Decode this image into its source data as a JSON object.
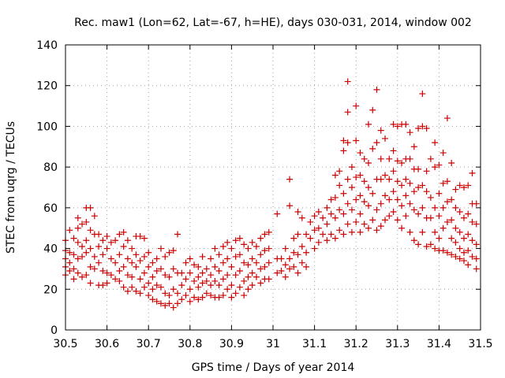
{
  "chart_data": {
    "type": "scatter",
    "title": "Rec. maw1 (Lon=62, Lat=-67, h=HE), days 030-031, 2014, window 002",
    "xlabel": "GPS time / Days of year 2014",
    "ylabel": "STEC from uqrg / TECUs",
    "xlim": [
      30.5,
      31.5
    ],
    "ylim": [
      0,
      140
    ],
    "xticks": [
      "30.5",
      "30.6",
      "30.7",
      "30.8",
      "30.9",
      "31",
      "31.1",
      "31.2",
      "31.3",
      "31.4",
      "31.5"
    ],
    "yticks": [
      "0",
      "20",
      "40",
      "60",
      "80",
      "100",
      "120",
      "140"
    ],
    "grid": true,
    "marker": "+",
    "color": "#cc0000",
    "points": [
      [
        30.5,
        44
      ],
      [
        30.5,
        39
      ],
      [
        30.5,
        35
      ],
      [
        30.5,
        31
      ],
      [
        30.5,
        27
      ],
      [
        30.51,
        49
      ],
      [
        30.51,
        38
      ],
      [
        30.51,
        33
      ],
      [
        30.51,
        29
      ],
      [
        30.52,
        45
      ],
      [
        30.52,
        37
      ],
      [
        30.52,
        30
      ],
      [
        30.52,
        25
      ],
      [
        30.53,
        55
      ],
      [
        30.53,
        50
      ],
      [
        30.53,
        43
      ],
      [
        30.53,
        35
      ],
      [
        30.53,
        28
      ],
      [
        30.54,
        52
      ],
      [
        30.54,
        41
      ],
      [
        30.54,
        36
      ],
      [
        30.54,
        26
      ],
      [
        30.55,
        60
      ],
      [
        30.55,
        53
      ],
      [
        30.55,
        44
      ],
      [
        30.55,
        38
      ],
      [
        30.55,
        27
      ],
      [
        30.56,
        60
      ],
      [
        30.56,
        49
      ],
      [
        30.56,
        40
      ],
      [
        30.56,
        31
      ],
      [
        30.56,
        23
      ],
      [
        30.57,
        56
      ],
      [
        30.57,
        47
      ],
      [
        30.57,
        36
      ],
      [
        30.57,
        30
      ],
      [
        30.58,
        47
      ],
      [
        30.58,
        41
      ],
      [
        30.58,
        33
      ],
      [
        30.58,
        22
      ],
      [
        30.59,
        44
      ],
      [
        30.59,
        37
      ],
      [
        30.59,
        29
      ],
      [
        30.59,
        22
      ],
      [
        30.6,
        46
      ],
      [
        30.6,
        40
      ],
      [
        30.6,
        28
      ],
      [
        30.6,
        23
      ],
      [
        30.61,
        43
      ],
      [
        30.61,
        35
      ],
      [
        30.61,
        27
      ],
      [
        30.62,
        44
      ],
      [
        30.62,
        33
      ],
      [
        30.62,
        25
      ],
      [
        30.63,
        47
      ],
      [
        30.63,
        37
      ],
      [
        30.63,
        29
      ],
      [
        30.63,
        24
      ],
      [
        30.64,
        48
      ],
      [
        30.64,
        41
      ],
      [
        30.64,
        31
      ],
      [
        30.64,
        21
      ],
      [
        30.65,
        44
      ],
      [
        30.65,
        35
      ],
      [
        30.65,
        27
      ],
      [
        30.65,
        19
      ],
      [
        30.66,
        40
      ],
      [
        30.66,
        33
      ],
      [
        30.66,
        26
      ],
      [
        30.66,
        21
      ],
      [
        30.67,
        46
      ],
      [
        30.67,
        37
      ],
      [
        30.67,
        31
      ],
      [
        30.67,
        19
      ],
      [
        30.68,
        46
      ],
      [
        30.68,
        34
      ],
      [
        30.68,
        25
      ],
      [
        30.68,
        18
      ],
      [
        30.69,
        45
      ],
      [
        30.69,
        36
      ],
      [
        30.69,
        28
      ],
      [
        30.69,
        21
      ],
      [
        30.7,
        38
      ],
      [
        30.7,
        31
      ],
      [
        30.7,
        23
      ],
      [
        30.7,
        17
      ],
      [
        30.71,
        33
      ],
      [
        30.71,
        26
      ],
      [
        30.71,
        20
      ],
      [
        30.71,
        15
      ],
      [
        30.72,
        35
      ],
      [
        30.72,
        29
      ],
      [
        30.72,
        22
      ],
      [
        30.72,
        14
      ],
      [
        30.73,
        40
      ],
      [
        30.73,
        30
      ],
      [
        30.73,
        21
      ],
      [
        30.73,
        13
      ],
      [
        30.74,
        36
      ],
      [
        30.74,
        27
      ],
      [
        30.74,
        18
      ],
      [
        30.74,
        12
      ],
      [
        30.75,
        38
      ],
      [
        30.75,
        26
      ],
      [
        30.75,
        17
      ],
      [
        30.75,
        13
      ],
      [
        30.76,
        39
      ],
      [
        30.76,
        30
      ],
      [
        30.76,
        20
      ],
      [
        30.76,
        11
      ],
      [
        30.77,
        47
      ],
      [
        30.77,
        28
      ],
      [
        30.77,
        18
      ],
      [
        30.77,
        13
      ],
      [
        30.78,
        28
      ],
      [
        30.78,
        22
      ],
      [
        30.78,
        15
      ],
      [
        30.79,
        33
      ],
      [
        30.79,
        25
      ],
      [
        30.79,
        17
      ],
      [
        30.8,
        35
      ],
      [
        30.8,
        28
      ],
      [
        30.8,
        20
      ],
      [
        30.8,
        14
      ],
      [
        30.81,
        32
      ],
      [
        30.81,
        24
      ],
      [
        30.81,
        16
      ],
      [
        30.82,
        31
      ],
      [
        30.82,
        26
      ],
      [
        30.82,
        21
      ],
      [
        30.82,
        15
      ],
      [
        30.83,
        36
      ],
      [
        30.83,
        28
      ],
      [
        30.83,
        23
      ],
      [
        30.83,
        16
      ],
      [
        30.84,
        30
      ],
      [
        30.84,
        24
      ],
      [
        30.84,
        18
      ],
      [
        30.85,
        35
      ],
      [
        30.85,
        27
      ],
      [
        30.85,
        22
      ],
      [
        30.85,
        17
      ],
      [
        30.86,
        40
      ],
      [
        30.86,
        31
      ],
      [
        30.86,
        24
      ],
      [
        30.86,
        16
      ],
      [
        30.87,
        37
      ],
      [
        30.87,
        29
      ],
      [
        30.87,
        22
      ],
      [
        30.87,
        16
      ],
      [
        30.88,
        41
      ],
      [
        30.88,
        33
      ],
      [
        30.88,
        25
      ],
      [
        30.88,
        17
      ],
      [
        30.89,
        43
      ],
      [
        30.89,
        35
      ],
      [
        30.89,
        27
      ],
      [
        30.89,
        20
      ],
      [
        30.9,
        40
      ],
      [
        30.9,
        31
      ],
      [
        30.9,
        22
      ],
      [
        30.9,
        16
      ],
      [
        30.91,
        44
      ],
      [
        30.91,
        36
      ],
      [
        30.91,
        27
      ],
      [
        30.91,
        18
      ],
      [
        30.92,
        45
      ],
      [
        30.92,
        37
      ],
      [
        30.92,
        29
      ],
      [
        30.92,
        21
      ],
      [
        30.93,
        42
      ],
      [
        30.93,
        33
      ],
      [
        30.93,
        24
      ],
      [
        30.93,
        17
      ],
      [
        30.94,
        40
      ],
      [
        30.94,
        32
      ],
      [
        30.94,
        26
      ],
      [
        30.94,
        20
      ],
      [
        30.95,
        43
      ],
      [
        30.95,
        35
      ],
      [
        30.95,
        28
      ],
      [
        30.95,
        22
      ],
      [
        30.96,
        41
      ],
      [
        30.96,
        33
      ],
      [
        30.96,
        26
      ],
      [
        30.97,
        45
      ],
      [
        30.97,
        37
      ],
      [
        30.97,
        30
      ],
      [
        30.97,
        23
      ],
      [
        30.98,
        47
      ],
      [
        30.98,
        39
      ],
      [
        30.98,
        31
      ],
      [
        30.98,
        25
      ],
      [
        30.99,
        48
      ],
      [
        30.99,
        40
      ],
      [
        30.99,
        33
      ],
      [
        30.99,
        25
      ],
      [
        31.01,
        57
      ],
      [
        31.01,
        35
      ],
      [
        31.01,
        28
      ],
      [
        31.02,
        35
      ],
      [
        31.02,
        29
      ],
      [
        31.03,
        40
      ],
      [
        31.03,
        32
      ],
      [
        31.03,
        26
      ],
      [
        31.04,
        74
      ],
      [
        31.04,
        61
      ],
      [
        31.04,
        35
      ],
      [
        31.04,
        30
      ],
      [
        31.05,
        45
      ],
      [
        31.05,
        38
      ],
      [
        31.05,
        31
      ],
      [
        31.06,
        58
      ],
      [
        31.06,
        47
      ],
      [
        31.06,
        37
      ],
      [
        31.06,
        28
      ],
      [
        31.07,
        55
      ],
      [
        31.07,
        41
      ],
      [
        31.07,
        33
      ],
      [
        31.08,
        47
      ],
      [
        31.08,
        38
      ],
      [
        31.08,
        31
      ],
      [
        31.09,
        53
      ],
      [
        31.09,
        45
      ],
      [
        31.1,
        56
      ],
      [
        31.1,
        49
      ],
      [
        31.1,
        40
      ],
      [
        31.11,
        58
      ],
      [
        31.11,
        50
      ],
      [
        31.11,
        43
      ],
      [
        31.12,
        55
      ],
      [
        31.12,
        47
      ],
      [
        31.13,
        60
      ],
      [
        31.13,
        52
      ],
      [
        31.13,
        44
      ],
      [
        31.14,
        64
      ],
      [
        31.14,
        57
      ],
      [
        31.14,
        47
      ],
      [
        31.15,
        76
      ],
      [
        31.15,
        65
      ],
      [
        31.15,
        55
      ],
      [
        31.15,
        45
      ],
      [
        31.16,
        78
      ],
      [
        31.16,
        71
      ],
      [
        31.16,
        59
      ],
      [
        31.16,
        49
      ],
      [
        31.17,
        93
      ],
      [
        31.17,
        88
      ],
      [
        31.17,
        67
      ],
      [
        31.17,
        57
      ],
      [
        31.17,
        47
      ],
      [
        31.18,
        122
      ],
      [
        31.18,
        107
      ],
      [
        31.18,
        92
      ],
      [
        31.18,
        74
      ],
      [
        31.18,
        62
      ],
      [
        31.18,
        52
      ],
      [
        31.19,
        80
      ],
      [
        31.19,
        70
      ],
      [
        31.19,
        59
      ],
      [
        31.19,
        48
      ],
      [
        31.2,
        110
      ],
      [
        31.2,
        93
      ],
      [
        31.2,
        75
      ],
      [
        31.2,
        64
      ],
      [
        31.2,
        53
      ],
      [
        31.21,
        87
      ],
      [
        31.21,
        76
      ],
      [
        31.21,
        66
      ],
      [
        31.21,
        57
      ],
      [
        31.21,
        48
      ],
      [
        31.22,
        84
      ],
      [
        31.22,
        73
      ],
      [
        31.22,
        63
      ],
      [
        31.22,
        52
      ],
      [
        31.23,
        101
      ],
      [
        31.23,
        82
      ],
      [
        31.23,
        70
      ],
      [
        31.23,
        61
      ],
      [
        31.23,
        50
      ],
      [
        31.24,
        108
      ],
      [
        31.24,
        89
      ],
      [
        31.24,
        67
      ],
      [
        31.24,
        54
      ],
      [
        31.25,
        118
      ],
      [
        31.25,
        92
      ],
      [
        31.25,
        74
      ],
      [
        31.25,
        59
      ],
      [
        31.25,
        49
      ],
      [
        31.26,
        98
      ],
      [
        31.26,
        84
      ],
      [
        31.26,
        74
      ],
      [
        31.26,
        62
      ],
      [
        31.26,
        51
      ],
      [
        31.27,
        94
      ],
      [
        31.27,
        76
      ],
      [
        31.27,
        66
      ],
      [
        31.27,
        54
      ],
      [
        31.28,
        84
      ],
      [
        31.28,
        74
      ],
      [
        31.28,
        64
      ],
      [
        31.28,
        56
      ],
      [
        31.29,
        101
      ],
      [
        31.29,
        88
      ],
      [
        31.29,
        78
      ],
      [
        31.29,
        68
      ],
      [
        31.29,
        58
      ],
      [
        31.3,
        100
      ],
      [
        31.3,
        83
      ],
      [
        31.3,
        73
      ],
      [
        31.3,
        64
      ],
      [
        31.3,
        54
      ],
      [
        31.31,
        101
      ],
      [
        31.31,
        82
      ],
      [
        31.31,
        71
      ],
      [
        31.31,
        61
      ],
      [
        31.31,
        50
      ],
      [
        31.32,
        101
      ],
      [
        31.32,
        84
      ],
      [
        31.32,
        74
      ],
      [
        31.32,
        66
      ],
      [
        31.32,
        56
      ],
      [
        31.33,
        97
      ],
      [
        31.33,
        84
      ],
      [
        31.33,
        72
      ],
      [
        31.33,
        62
      ],
      [
        31.33,
        48
      ],
      [
        31.34,
        90
      ],
      [
        31.34,
        79
      ],
      [
        31.34,
        68
      ],
      [
        31.34,
        59
      ],
      [
        31.34,
        44
      ],
      [
        31.35,
        99
      ],
      [
        31.35,
        79
      ],
      [
        31.35,
        70
      ],
      [
        31.35,
        57
      ],
      [
        31.35,
        42
      ],
      [
        31.36,
        116
      ],
      [
        31.36,
        100
      ],
      [
        31.36,
        71
      ],
      [
        31.36,
        60
      ],
      [
        31.36,
        48
      ],
      [
        31.37,
        99
      ],
      [
        31.37,
        78
      ],
      [
        31.37,
        68
      ],
      [
        31.37,
        55
      ],
      [
        31.37,
        41
      ],
      [
        31.38,
        84
      ],
      [
        31.38,
        65
      ],
      [
        31.38,
        55
      ],
      [
        31.38,
        42
      ],
      [
        31.39,
        92
      ],
      [
        31.39,
        80
      ],
      [
        31.39,
        60
      ],
      [
        31.39,
        48
      ],
      [
        31.39,
        40
      ],
      [
        31.4,
        81
      ],
      [
        31.4,
        67
      ],
      [
        31.4,
        56
      ],
      [
        31.4,
        45
      ],
      [
        31.4,
        39
      ],
      [
        31.41,
        87
      ],
      [
        31.41,
        72
      ],
      [
        31.41,
        60
      ],
      [
        31.41,
        50
      ],
      [
        31.41,
        39
      ],
      [
        31.42,
        104
      ],
      [
        31.42,
        73
      ],
      [
        31.42,
        63
      ],
      [
        31.42,
        53
      ],
      [
        31.42,
        38
      ],
      [
        31.43,
        82
      ],
      [
        31.43,
        64
      ],
      [
        31.43,
        54
      ],
      [
        31.43,
        45
      ],
      [
        31.43,
        37
      ],
      [
        31.44,
        69
      ],
      [
        31.44,
        60
      ],
      [
        31.44,
        50
      ],
      [
        31.44,
        43
      ],
      [
        31.44,
        36
      ],
      [
        31.45,
        71
      ],
      [
        31.45,
        58
      ],
      [
        31.45,
        48
      ],
      [
        31.45,
        40
      ],
      [
        31.45,
        35
      ],
      [
        31.46,
        70
      ],
      [
        31.46,
        55
      ],
      [
        31.46,
        45
      ],
      [
        31.46,
        38
      ],
      [
        31.46,
        34
      ],
      [
        31.47,
        71
      ],
      [
        31.47,
        57
      ],
      [
        31.47,
        47
      ],
      [
        31.47,
        39
      ],
      [
        31.47,
        32
      ],
      [
        31.48,
        77
      ],
      [
        31.48,
        62
      ],
      [
        31.48,
        53
      ],
      [
        31.48,
        44
      ],
      [
        31.48,
        36
      ],
      [
        31.49,
        62
      ],
      [
        31.49,
        52
      ],
      [
        31.49,
        42
      ],
      [
        31.49,
        35
      ],
      [
        31.49,
        30
      ]
    ]
  }
}
